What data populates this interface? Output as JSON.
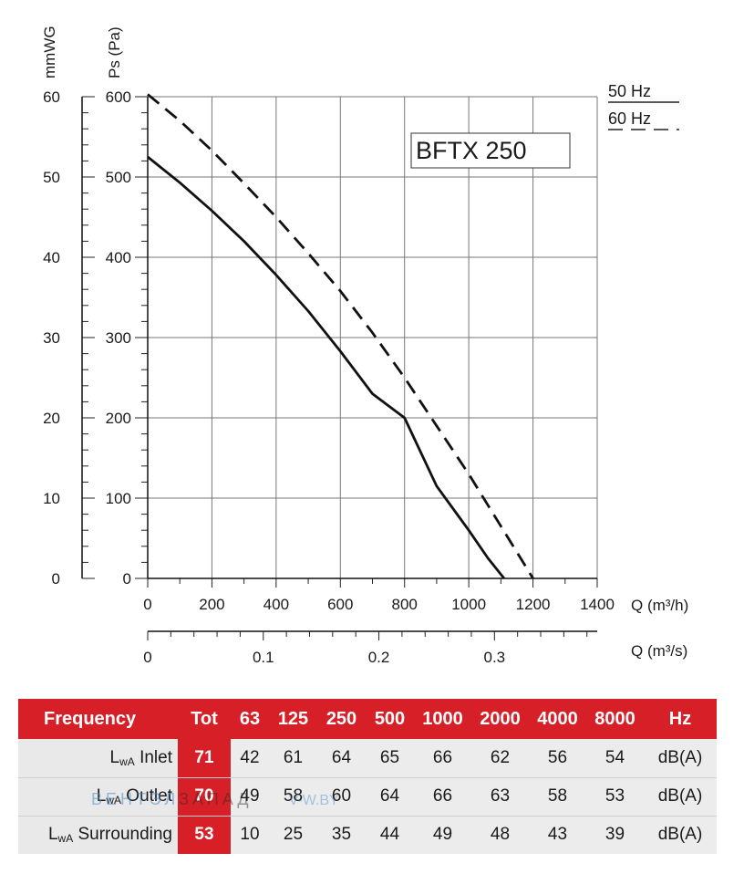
{
  "chart_data": {
    "type": "line",
    "title": "BFTX 250",
    "y_left_label": "mmWG",
    "y_right_label": "Ps (Pa)",
    "x_label": "Q (m³/h)",
    "x2_label": "Q (m³/s)",
    "x_range": [
      0,
      1400
    ],
    "y_range": [
      0,
      600
    ],
    "y_ticks_pa": [
      "0",
      "100",
      "200",
      "300",
      "400",
      "500",
      "600"
    ],
    "y_ticks_mmwg": [
      "0",
      "10",
      "20",
      "30",
      "40",
      "50",
      "60"
    ],
    "x_ticks": [
      "0",
      "200",
      "400",
      "600",
      "800",
      "1000",
      "1200",
      "1400"
    ],
    "x2_ticks": [
      {
        "value": 0,
        "label": "0"
      },
      {
        "value": 360,
        "label": "0.1"
      },
      {
        "value": 720,
        "label": "0.2"
      },
      {
        "value": 1080,
        "label": "0.3"
      }
    ],
    "grid": true,
    "legend": [
      {
        "label": "50 Hz",
        "style": "solid"
      },
      {
        "label": "60 Hz",
        "style": "dashed"
      }
    ],
    "series": [
      {
        "name": "50 Hz",
        "style": "solid",
        "color": "#111111",
        "x": [
          0,
          100,
          200,
          300,
          400,
          500,
          600,
          700,
          800,
          900,
          1000,
          1060,
          1110
        ],
        "y": [
          525,
          493,
          458,
          420,
          378,
          333,
          283,
          230,
          200,
          115,
          60,
          25,
          0
        ]
      },
      {
        "name": "60 Hz",
        "style": "dashed",
        "color": "#111111",
        "x": [
          0,
          100,
          200,
          300,
          400,
          500,
          600,
          700,
          800,
          900,
          1000,
          1100,
          1200
        ],
        "y": [
          603,
          570,
          533,
          492,
          450,
          405,
          358,
          306,
          250,
          190,
          130,
          65,
          0
        ]
      }
    ]
  },
  "table": {
    "headers": [
      "Frequency",
      "Tot",
      "63",
      "125",
      "250",
      "500",
      "1000",
      "2000",
      "4000",
      "8000",
      "Hz"
    ],
    "rows": [
      {
        "label_main": "L",
        "label_sub": "wA",
        "label_rest": " Inlet",
        "tot": "71",
        "values": [
          "42",
          "61",
          "64",
          "65",
          "66",
          "62",
          "56",
          "54"
        ],
        "unit": "dB(A)"
      },
      {
        "label_main": "L",
        "label_sub": "wA",
        "label_rest": " Outlet",
        "tot": "70",
        "values": [
          "49",
          "58",
          "60",
          "64",
          "66",
          "63",
          "58",
          "53"
        ],
        "unit": "dB(A)"
      },
      {
        "label_main": "L",
        "label_sub": "wA",
        "label_rest": " Surrounding",
        "tot": "53",
        "values": [
          "10",
          "25",
          "35",
          "44",
          "49",
          "48",
          "43",
          "39"
        ],
        "unit": "dB(A)"
      }
    ],
    "accent_color": "#d71f27"
  },
  "watermark": {
    "part1": "ВЕНТЭЛ",
    "part2": "ЗАПАД",
    "part3": "V-W.BY"
  }
}
